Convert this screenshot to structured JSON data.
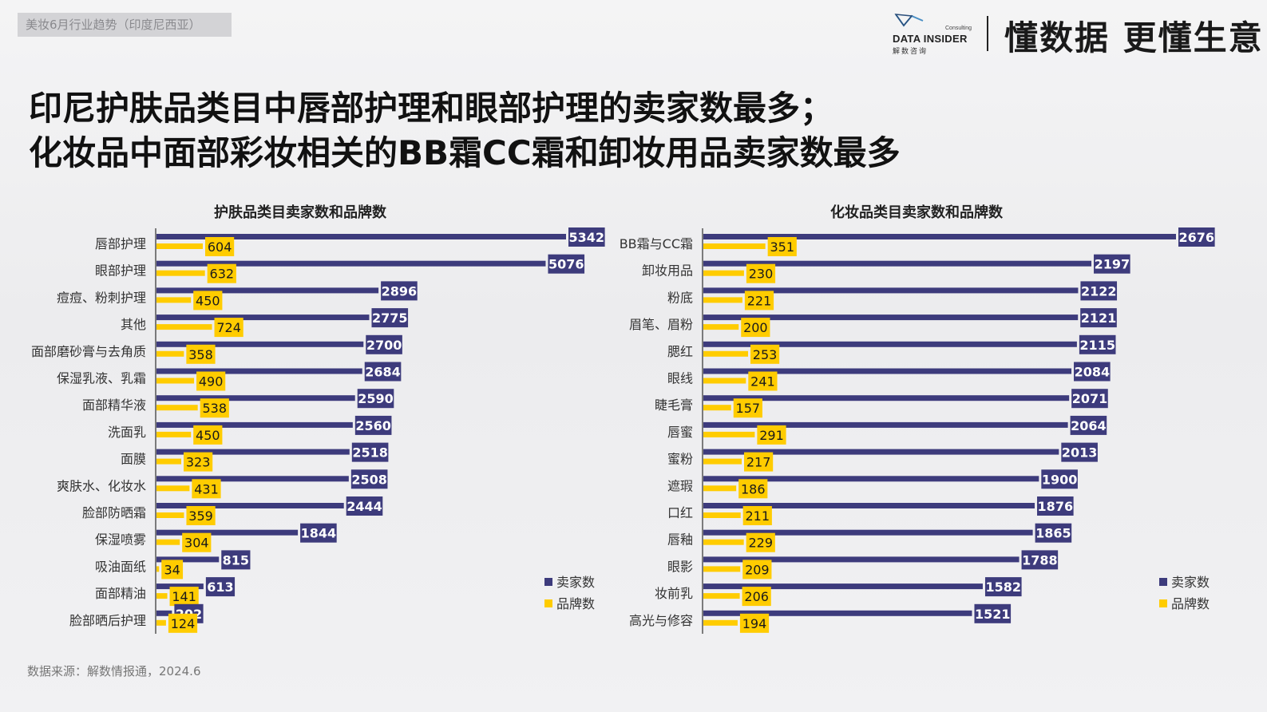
{
  "header": {
    "tag": "美妆6月行业趋势（印度尼西亚）",
    "logo": {
      "brand": "DATA INSIDER",
      "sub": "解数咨询",
      "small": "Consulting"
    },
    "slogan": "懂数据 更懂生意"
  },
  "headline": {
    "line1": "印尼护肤品类目中唇部护理和眼部护理的卖家数最多；",
    "line2": "化妆品中面部彩妆相关的BB霜CC霜和卸妆用品卖家数最多"
  },
  "source": "数据来源：解数情报通，2024.6",
  "colors": {
    "sellers": "#3d3b7c",
    "brands": "#ffcc00"
  },
  "chart_data": [
    {
      "type": "bar",
      "orientation": "horizontal",
      "title": "护肤品类目卖家数和品牌数",
      "categories": [
        "唇部护理",
        "眼部护理",
        "痘痘、粉刺护理",
        "其他",
        "面部磨砂膏与去角质",
        "保湿乳液、乳霜",
        "面部精华液",
        "洗面乳",
        "面膜",
        "爽肤水、化妆水",
        "脸部防晒霜",
        "保湿喷雾",
        "吸油面纸",
        "面部精油",
        "脸部晒后护理"
      ],
      "series": [
        {
          "name": "卖家数",
          "values": [
            5342,
            5076,
            2896,
            2775,
            2700,
            2684,
            2590,
            2560,
            2518,
            2508,
            2444,
            1844,
            815,
            613,
            202
          ]
        },
        {
          "name": "品牌数",
          "values": [
            604,
            632,
            450,
            724,
            358,
            490,
            538,
            450,
            323,
            431,
            359,
            304,
            34,
            141,
            124
          ]
        }
      ],
      "legend": "bottom-right",
      "grid": false
    },
    {
      "type": "bar",
      "orientation": "horizontal",
      "title": "化妆品类目卖家数和品牌数",
      "categories": [
        "BB霜与CC霜",
        "卸妆用品",
        "粉底",
        "眉笔、眉粉",
        "腮红",
        "眼线",
        "睫毛膏",
        "唇蜜",
        "蜜粉",
        "遮瑕",
        "口红",
        "唇釉",
        "眼影",
        "妆前乳",
        "高光与修容"
      ],
      "series": [
        {
          "name": "卖家数",
          "values": [
            2676,
            2197,
            2122,
            2121,
            2115,
            2084,
            2071,
            2064,
            2013,
            1900,
            1876,
            1865,
            1788,
            1582,
            1521
          ]
        },
        {
          "name": "品牌数",
          "values": [
            351,
            230,
            221,
            200,
            253,
            241,
            157,
            291,
            217,
            186,
            211,
            229,
            209,
            206,
            194
          ]
        }
      ],
      "legend": "bottom-right",
      "grid": false
    }
  ]
}
